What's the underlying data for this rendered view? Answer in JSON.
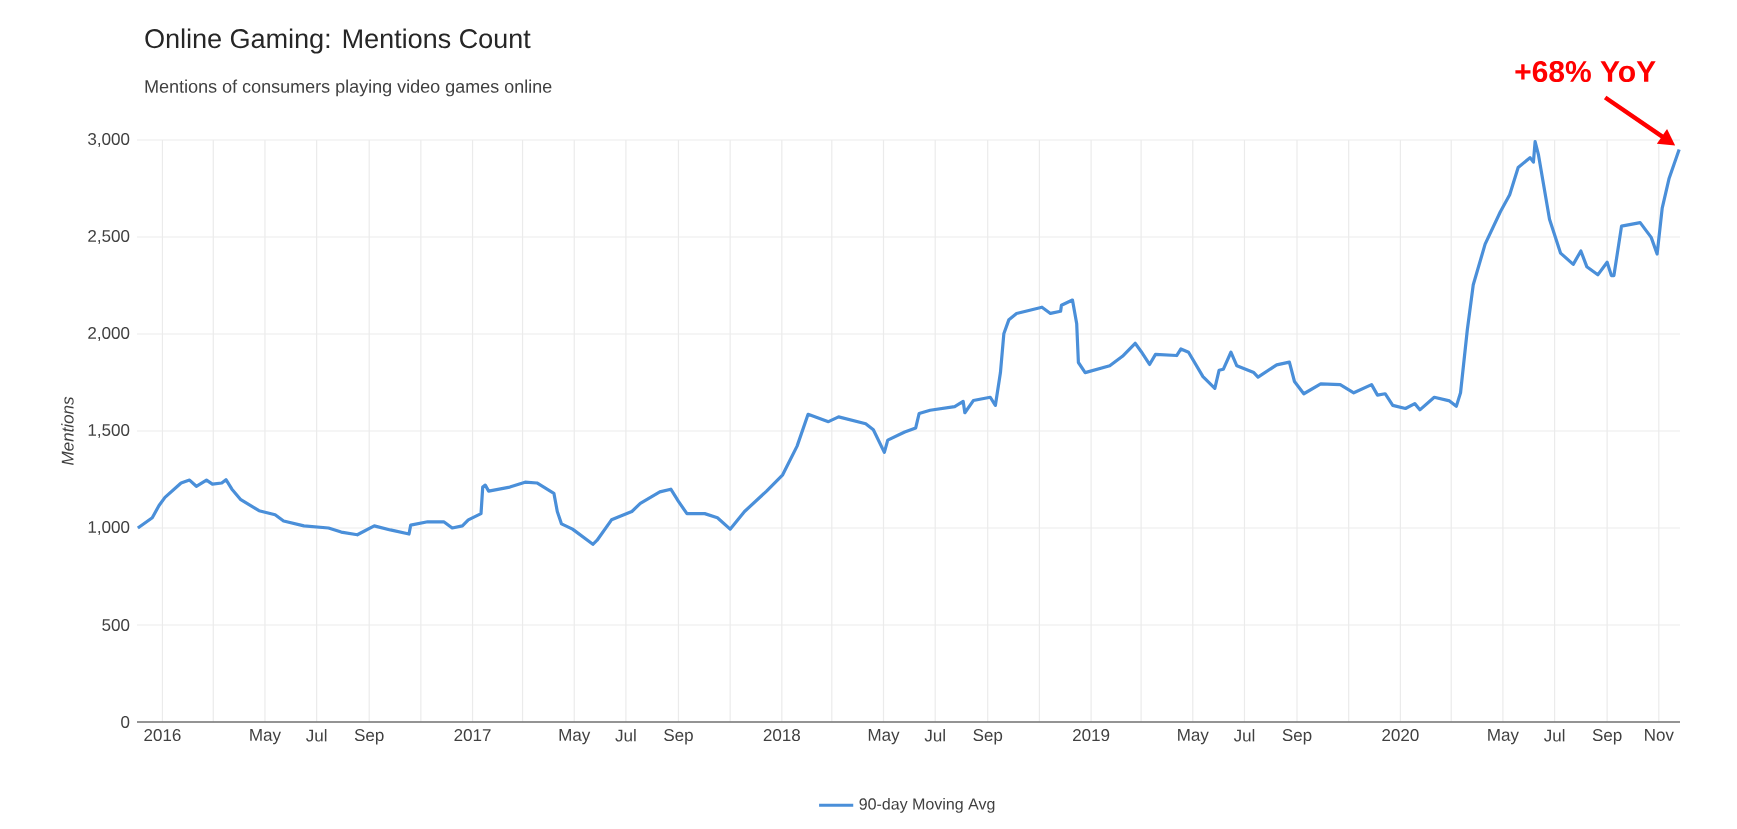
{
  "chart_data": {
    "type": "line",
    "title": "Online Gaming: Mentions Count",
    "subtitle": "Mentions of consumers playing video games online",
    "ylabel": "Mentions",
    "annotations": [
      {
        "text": "+68% YoY",
        "x": "2020-11-25",
        "y": 2951
      }
    ],
    "x": [
      "2015-12-03",
      "2015-12-20",
      "2015-12-28",
      "2016-01-04",
      "2016-01-23",
      "2016-02-02",
      "2016-02-10",
      "2016-02-22",
      "2016-02-29",
      "2016-03-11",
      "2016-03-16",
      "2016-03-23",
      "2016-04-02",
      "2016-04-24",
      "2016-05-13",
      "2016-05-23",
      "2016-06-16",
      "2016-07-15",
      "2016-07-30",
      "2016-08-18",
      "2016-09-07",
      "2016-09-26",
      "2016-10-18",
      "2016-10-20",
      "2016-11-09",
      "2016-11-28",
      "2016-12-08",
      "2016-12-20",
      "2016-12-27",
      "2017-01-11",
      "2017-01-13",
      "2017-01-16",
      "2017-01-20",
      "2017-02-14",
      "2017-03-04",
      "2017-03-18",
      "2017-04-07",
      "2017-04-11",
      "2017-04-16",
      "2017-04-29",
      "2017-05-23",
      "2017-05-28",
      "2017-06-14",
      "2017-07-08",
      "2017-07-18",
      "2017-08-10",
      "2017-08-23",
      "2017-09-01",
      "2017-09-11",
      "2017-10-02",
      "2017-10-17",
      "2017-11-01",
      "2017-11-18",
      "2017-12-14",
      "2018-01-02",
      "2018-01-19",
      "2018-02-01",
      "2018-02-25",
      "2018-03-09",
      "2018-04-10",
      "2018-04-19",
      "2018-05-02",
      "2018-05-06",
      "2018-05-26",
      "2018-06-08",
      "2018-06-12",
      "2018-06-25",
      "2018-07-24",
      "2018-08-03",
      "2018-08-05",
      "2018-08-15",
      "2018-09-04",
      "2018-09-10",
      "2018-09-16",
      "2018-09-20",
      "2018-09-26",
      "2018-10-05",
      "2018-11-04",
      "2018-11-14",
      "2018-11-26",
      "2018-11-27",
      "2018-12-10",
      "2018-12-15",
      "2018-12-17",
      "2018-12-25",
      "2019-01-23",
      "2019-02-07",
      "2019-02-22",
      "2019-03-01",
      "2019-03-11",
      "2019-03-18",
      "2019-04-12",
      "2019-04-17",
      "2019-04-26",
      "2019-05-13",
      "2019-05-27",
      "2019-06-01",
      "2019-06-06",
      "2019-06-15",
      "2019-06-22",
      "2019-07-12",
      "2019-07-17",
      "2019-08-08",
      "2019-08-23",
      "2019-08-29",
      "2019-09-09",
      "2019-09-29",
      "2019-10-22",
      "2019-11-07",
      "2019-11-28",
      "2019-12-05",
      "2019-12-14",
      "2019-12-23",
      "2020-01-07",
      "2020-01-18",
      "2020-01-24",
      "2020-02-10",
      "2020-02-28",
      "2020-03-07",
      "2020-03-12",
      "2020-03-20",
      "2020-03-27",
      "2020-04-10",
      "2020-04-28",
      "2020-05-09",
      "2020-05-19",
      "2020-06-02",
      "2020-06-06",
      "2020-06-08",
      "2020-06-12",
      "2020-06-25",
      "2020-07-08",
      "2020-07-23",
      "2020-08-01",
      "2020-08-08",
      "2020-08-21",
      "2020-09-01",
      "2020-09-06",
      "2020-09-09",
      "2020-09-18",
      "2020-10-10",
      "2020-10-23",
      "2020-10-30",
      "2020-11-05",
      "2020-11-13",
      "2020-11-25"
    ],
    "series": [
      {
        "name": "90-day Moving Avg",
        "color": "#4a8fd9",
        "values": [
          1000,
          1053,
          1116,
          1158,
          1232,
          1247,
          1215,
          1247,
          1226,
          1232,
          1249,
          1200,
          1148,
          1089,
          1068,
          1036,
          1011,
          1000,
          979,
          965,
          1011,
          990,
          969,
          1015,
          1032,
          1032,
          1000,
          1011,
          1042,
          1074,
          1211,
          1221,
          1190,
          1211,
          1236,
          1232,
          1179,
          1085,
          1021,
          994,
          916,
          937,
          1042,
          1085,
          1127,
          1186,
          1200,
          1137,
          1074,
          1074,
          1053,
          994,
          1085,
          1190,
          1274,
          1422,
          1586,
          1548,
          1573,
          1537,
          1506,
          1390,
          1453,
          1495,
          1516,
          1590,
          1607,
          1626,
          1653,
          1594,
          1657,
          1674,
          1632,
          1801,
          2001,
          2074,
          2106,
          2138,
          2106,
          2117,
          2148,
          2175,
          2053,
          1853,
          1801,
          1836,
          1885,
          1952,
          1910,
          1843,
          1895,
          1889,
          1923,
          1906,
          1780,
          1720,
          1813,
          1818,
          1906,
          1836,
          1801,
          1778,
          1841,
          1855,
          1755,
          1692,
          1743,
          1739,
          1697,
          1739,
          1685,
          1692,
          1632,
          1616,
          1641,
          1609,
          1674,
          1655,
          1627,
          1697,
          2022,
          2254,
          2463,
          2630,
          2718,
          2858,
          2909,
          2886,
          2992,
          2923,
          2591,
          2417,
          2359,
          2428,
          2347,
          2305,
          2370,
          2301,
          2301,
          2556,
          2574,
          2498,
          2412,
          2649,
          2800,
          2951
        ]
      }
    ],
    "xlim": [
      "2015-12-02",
      "2020-11-26"
    ],
    "ylim": [
      0,
      3000
    ],
    "xticks": [
      {
        "value": "2016-01",
        "label": "2016"
      },
      {
        "value": "2016-03",
        "label": null
      },
      {
        "value": "2016-05",
        "label": "May"
      },
      {
        "value": "2016-07",
        "label": "Jul"
      },
      {
        "value": "2016-09",
        "label": "Sep"
      },
      {
        "value": "2016-11",
        "label": null
      },
      {
        "value": "2017-01",
        "label": "2017"
      },
      {
        "value": "2017-03",
        "label": null
      },
      {
        "value": "2017-05",
        "label": "May"
      },
      {
        "value": "2017-07",
        "label": "Jul"
      },
      {
        "value": "2017-09",
        "label": "Sep"
      },
      {
        "value": "2017-11",
        "label": null
      },
      {
        "value": "2018-01",
        "label": "2018"
      },
      {
        "value": "2018-03",
        "label": null
      },
      {
        "value": "2018-05",
        "label": "May"
      },
      {
        "value": "2018-07",
        "label": "Jul"
      },
      {
        "value": "2018-09",
        "label": "Sep"
      },
      {
        "value": "2018-11",
        "label": null
      },
      {
        "value": "2019-01",
        "label": "2019"
      },
      {
        "value": "2019-03",
        "label": null
      },
      {
        "value": "2019-05",
        "label": "May"
      },
      {
        "value": "2019-07",
        "label": "Jul"
      },
      {
        "value": "2019-09",
        "label": "Sep"
      },
      {
        "value": "2019-11",
        "label": null
      },
      {
        "value": "2020-01",
        "label": "2020"
      },
      {
        "value": "2020-03",
        "label": null
      },
      {
        "value": "2020-05",
        "label": "May"
      },
      {
        "value": "2020-07",
        "label": "Jul"
      },
      {
        "value": "2020-09",
        "label": "Sep"
      },
      {
        "value": "2020-11",
        "label": "Nov"
      }
    ],
    "yticks": [
      0,
      500,
      {
        "value": 1000,
        "label": "1,000"
      },
      {
        "value": 1500,
        "label": "1,500"
      },
      {
        "value": 2000,
        "label": "2,000"
      },
      {
        "value": 2500,
        "label": "2,500"
      },
      {
        "value": 3000,
        "label": "3,000"
      }
    ],
    "grid": true,
    "legend": "bottom"
  }
}
